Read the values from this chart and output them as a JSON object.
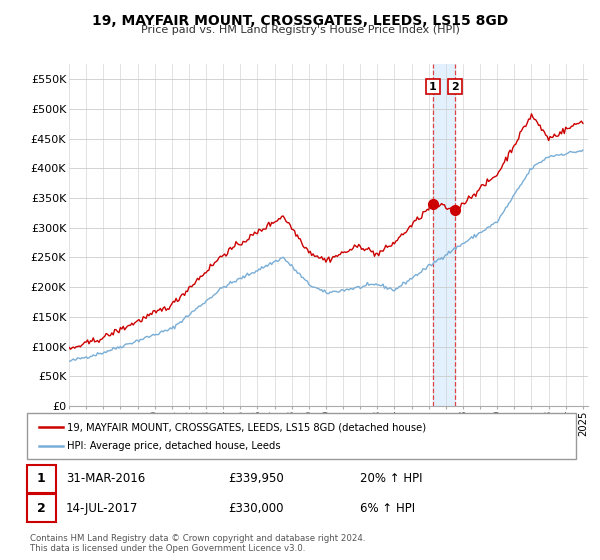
{
  "title": "19, MAYFAIR MOUNT, CROSSGATES, LEEDS, LS15 8GD",
  "subtitle": "Price paid vs. HM Land Registry's House Price Index (HPI)",
  "ylim": [
    0,
    575000
  ],
  "yticks": [
    0,
    50000,
    100000,
    150000,
    200000,
    250000,
    300000,
    350000,
    400000,
    450000,
    500000,
    550000
  ],
  "ytick_labels": [
    "£0",
    "£50K",
    "£100K",
    "£150K",
    "£200K",
    "£250K",
    "£300K",
    "£350K",
    "£400K",
    "£450K",
    "£500K",
    "£550K"
  ],
  "line1_color": "#cc0000",
  "line2_color": "#7aaed6",
  "sale1_date": 2016.25,
  "sale1_price": 339950,
  "sale2_date": 2017.54,
  "sale2_price": 330000,
  "vline_color": "#dd4444",
  "vshade_color": "#ddeeff",
  "legend_line1": "19, MAYFAIR MOUNT, CROSSGATES, LEEDS, LS15 8GD (detached house)",
  "legend_line2": "HPI: Average price, detached house, Leeds",
  "annotation1": [
    "1",
    "31-MAR-2016",
    "£339,950",
    "20% ↑ HPI"
  ],
  "annotation2": [
    "2",
    "14-JUL-2017",
    "£330,000",
    "6% ↑ HPI"
  ],
  "footer": "Contains HM Land Registry data © Crown copyright and database right 2024.\nThis data is licensed under the Open Government Licence v3.0.",
  "background_color": "#ffffff",
  "grid_color": "#cccccc"
}
